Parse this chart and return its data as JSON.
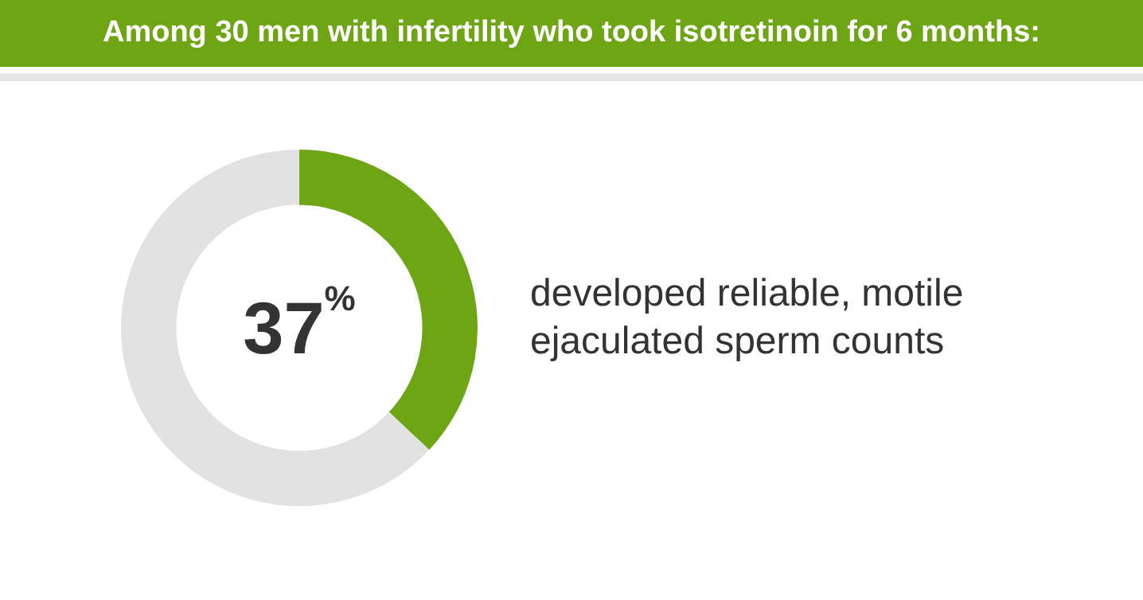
{
  "chart_data": {
    "type": "donut",
    "title": "Among 30 men with infertility who took isotretinoin for 6 months:",
    "categories": [
      "developed reliable, motile ejaculated sperm counts",
      null
    ],
    "values": [
      37,
      63
    ],
    "colors": [
      "#6ea514",
      "#e2e2e2"
    ],
    "value_labels": [
      "37$^{%}$",
      null
    ]
  }
}
